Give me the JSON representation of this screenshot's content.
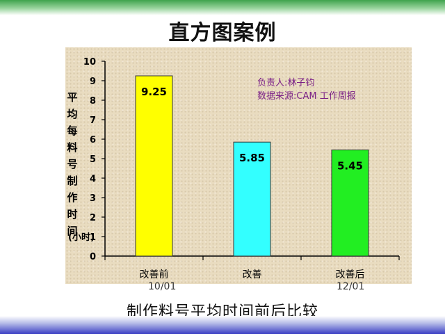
{
  "slide": {
    "title": "直方图案例",
    "bottom_title": "制作料号平均时间前后比较",
    "annotation": [
      "负责人:林子钧",
      "数据来源:CAM 工作周报"
    ],
    "date_labels": [
      "10/01",
      "12/01"
    ]
  },
  "chart_data": {
    "type": "bar",
    "categories": [
      "改善前",
      "改善",
      "改善后"
    ],
    "values": [
      9.25,
      5.85,
      5.45
    ],
    "ylabel": "平均每料号制作时间",
    "yunit": "(小时)",
    "ylim": [
      0,
      10
    ],
    "yticks": [
      0,
      1,
      2,
      3,
      4,
      5,
      6,
      7,
      8,
      9,
      10
    ],
    "colors": [
      "#ffff00",
      "#33ffff",
      "#22ee22"
    ],
    "grid": false
  }
}
